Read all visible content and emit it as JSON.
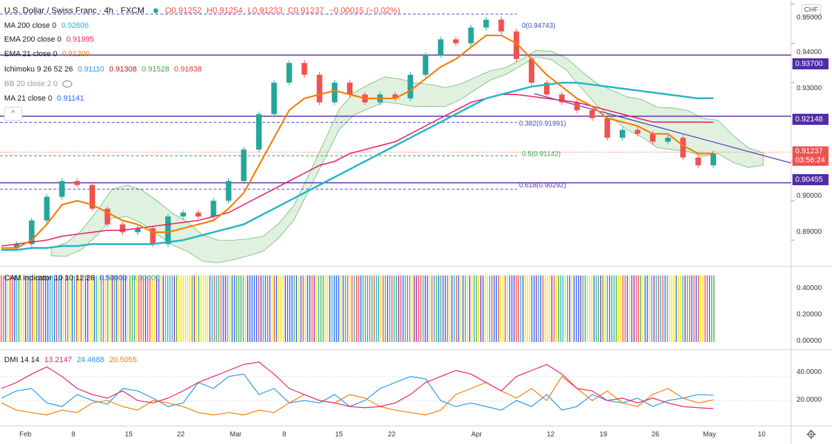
{
  "header": {
    "symbol": "U.S. Dollar / Swiss Franc · 4h · FXCM",
    "open": "O0.91252",
    "high": "H0.91254",
    "low": "L0.91233",
    "close": "C0.91237",
    "change": "−0.00015 (−0.02%)"
  },
  "indicators": [
    {
      "name": "MA 200 close 0",
      "values": [
        "0.92606"
      ],
      "colors": [
        "#26b5c8"
      ]
    },
    {
      "name": "EMA 200 close 0",
      "values": [
        "0.91995"
      ],
      "colors": [
        "#e91e63"
      ]
    },
    {
      "name": "EMA 21 close 0",
      "values": [
        "0.91200"
      ],
      "colors": [
        "#f57c00"
      ]
    },
    {
      "name": "Ichimoku 9 26 52 26",
      "values": [
        "0.91110",
        "0.91308",
        "0.91528",
        "0.91838"
      ],
      "colors": [
        "#2196f3",
        "#b71c1c",
        "#43a047",
        "#e53935"
      ]
    },
    {
      "name": "BB 20 close 2 0",
      "values": [],
      "colors": []
    },
    {
      "name": "MA 21 close 0",
      "values": [
        "0.91141"
      ],
      "colors": [
        "#2962ff"
      ]
    }
  ],
  "currency_button": "CHF",
  "collapse_button": "^",
  "price_axis": {
    "ticks": [
      "0.95000",
      "0.94000",
      "0.93000",
      "0.92000",
      "0.91000",
      "0.90000",
      "0.89000"
    ],
    "tags": [
      {
        "label": "0.93700",
        "color": "#512da8"
      },
      {
        "label": "0.92148",
        "color": "#512da8"
      },
      {
        "label": "0.91237",
        "label2": "03:56:24",
        "color": "#ef5350"
      },
      {
        "label": "0.90455",
        "color": "#512da8"
      }
    ]
  },
  "fib_levels": [
    {
      "label": "0(0.94743)",
      "price": 0.94743
    },
    {
      "label": "0.382(0.91991)",
      "price": 0.91991
    },
    {
      "label": "0.5(0.91142)",
      "price": 0.91142
    },
    {
      "label": "0.618(0.90292)",
      "price": 0.90292
    }
  ],
  "horizontal_lines": [
    0.937,
    0.92148,
    0.90455
  ],
  "cam_panel": {
    "title": "CAM indicator 10 10 12 26",
    "values": [
      "0.50000",
      "0.00000"
    ],
    "value_colors": [
      "#2962ff",
      "#26b5c8"
    ],
    "ticks": [
      "0.40000",
      "0.20000",
      "0.00000"
    ]
  },
  "dmi_panel": {
    "title": "DMI 14 14",
    "values": [
      "13.2147",
      "24.4688",
      "20.5055"
    ],
    "value_colors": [
      "#e91e63",
      "#2196f3",
      "#f57c00"
    ],
    "ticks": [
      "40.0000",
      "20.0000"
    ]
  },
  "time_axis": [
    "Feb",
    "8",
    "15",
    "22",
    "Mar",
    "8",
    "15",
    "22",
    "Apr",
    "12",
    "19",
    "26",
    "May",
    "10"
  ],
  "chart_data": {
    "type": "line",
    "title": "U.S. Dollar / Swiss Franc · 4h · FXCM",
    "ylim": [
      0.8835,
      0.951
    ],
    "x_range": [
      "Feb",
      "May"
    ],
    "series": [
      {
        "name": "Price (close)",
        "color": "#26a69a",
        "values": [
          0.888,
          0.889,
          0.895,
          0.901,
          0.905,
          0.904,
          0.898,
          0.894,
          0.892,
          0.893,
          0.889,
          0.896,
          0.897,
          0.896,
          0.9,
          0.905,
          0.913,
          0.922,
          0.93,
          0.935,
          0.932,
          0.925,
          0.93,
          0.927,
          0.925,
          0.927,
          0.926,
          0.932,
          0.937,
          0.941,
          0.94,
          0.944,
          0.946,
          0.943,
          0.936,
          0.93,
          0.927,
          0.925,
          0.923,
          0.921,
          0.916,
          0.918,
          0.917,
          0.915,
          0.916,
          0.911,
          0.909,
          0.912
        ]
      },
      {
        "name": "EMA 21 close 0",
        "color": "#f57c00",
        "values": [
          0.888,
          0.888,
          0.89,
          0.894,
          0.899,
          0.9,
          0.899,
          0.897,
          0.895,
          0.894,
          0.892,
          0.892,
          0.893,
          0.894,
          0.895,
          0.898,
          0.902,
          0.909,
          0.916,
          0.923,
          0.926,
          0.927,
          0.928,
          0.927,
          0.926,
          0.926,
          0.926,
          0.928,
          0.931,
          0.934,
          0.936,
          0.939,
          0.942,
          0.942,
          0.94,
          0.936,
          0.932,
          0.929,
          0.926,
          0.924,
          0.921,
          0.92,
          0.919,
          0.917,
          0.917,
          0.914,
          0.912,
          0.912
        ]
      },
      {
        "name": "EMA 200 close 0",
        "color": "#e91e63",
        "values": [
          0.8885,
          0.889,
          0.8895,
          0.89,
          0.891,
          0.8915,
          0.892,
          0.8925,
          0.8925,
          0.893,
          0.8935,
          0.894,
          0.8945,
          0.895,
          0.896,
          0.897,
          0.899,
          0.901,
          0.903,
          0.905,
          0.907,
          0.909,
          0.91,
          0.912,
          0.913,
          0.914,
          0.915,
          0.917,
          0.919,
          0.921,
          0.923,
          0.925,
          0.926,
          0.927,
          0.927,
          0.9265,
          0.926,
          0.9255,
          0.925,
          0.924,
          0.923,
          0.922,
          0.921,
          0.92,
          0.92,
          0.92,
          0.92,
          0.91995
        ]
      },
      {
        "name": "MA 200 close 0",
        "color": "#26b5c8",
        "values": [
          0.8875,
          0.8875,
          0.888,
          0.888,
          0.8885,
          0.8885,
          0.889,
          0.889,
          0.889,
          0.889,
          0.889,
          0.8895,
          0.89,
          0.891,
          0.892,
          0.893,
          0.894,
          0.896,
          0.898,
          0.9,
          0.902,
          0.904,
          0.906,
          0.908,
          0.91,
          0.912,
          0.914,
          0.916,
          0.918,
          0.92,
          0.922,
          0.924,
          0.926,
          0.927,
          0.928,
          0.929,
          0.9295,
          0.93,
          0.93,
          0.9295,
          0.929,
          0.9285,
          0.928,
          0.9275,
          0.927,
          0.9265,
          0.926,
          0.92606
        ]
      },
      {
        "name": "DMI +DI",
        "color": "#2196f3",
        "values": [
          22,
          28,
          30,
          18,
          15,
          25,
          20,
          17,
          30,
          28,
          22,
          15,
          18,
          35,
          30,
          40,
          42,
          25,
          30,
          18,
          20,
          18,
          25,
          15,
          20,
          30,
          35,
          40,
          38,
          20,
          15,
          18,
          15,
          12,
          20,
          15,
          25,
          12,
          15,
          25,
          20,
          18,
          22,
          15,
          20,
          22,
          25,
          24.47
        ]
      },
      {
        "name": "DMI −DI",
        "color": "#f57c00",
        "values": [
          18,
          12,
          10,
          8,
          12,
          10,
          18,
          20,
          15,
          12,
          20,
          18,
          15,
          10,
          8,
          10,
          8,
          12,
          10,
          18,
          25,
          20,
          18,
          25,
          22,
          15,
          12,
          10,
          8,
          12,
          25,
          30,
          35,
          28,
          22,
          30,
          20,
          40,
          30,
          20,
          28,
          18,
          15,
          25,
          30,
          22,
          18,
          20.51
        ]
      },
      {
        "name": "DMI ADX",
        "color": "#e91e63",
        "values": [
          30,
          35,
          42,
          48,
          40,
          30,
          25,
          22,
          28,
          20,
          18,
          22,
          28,
          35,
          40,
          45,
          50,
          52,
          42,
          30,
          25,
          20,
          18,
          15,
          14,
          15,
          18,
          25,
          35,
          40,
          45,
          42,
          35,
          28,
          40,
          45,
          50,
          42,
          30,
          28,
          20,
          22,
          18,
          22,
          18,
          15,
          14,
          13.21
        ]
      }
    ],
    "cam_indicator": {
      "palette": [
        "#2962ff",
        "#26b5c8",
        "#f5e50a",
        "#ef5350",
        "#4caf50",
        "#9c27b0",
        "#ff9800"
      ]
    }
  }
}
